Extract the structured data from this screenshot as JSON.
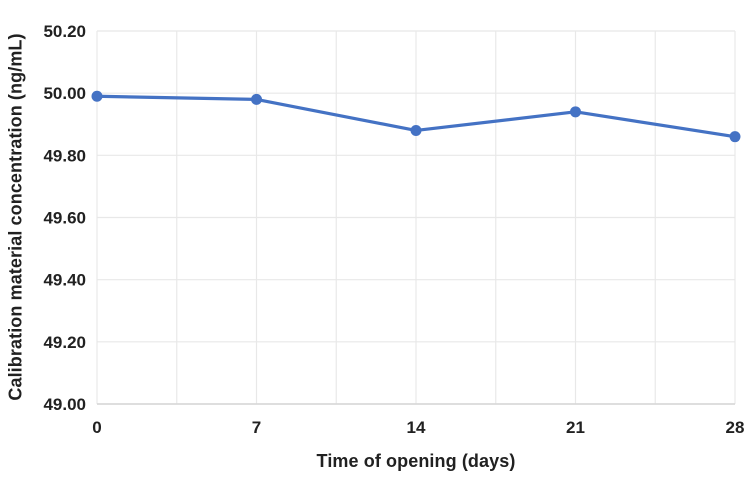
{
  "chart_data": {
    "type": "line",
    "title": "",
    "xlabel": "Time of opening (days)",
    "ylabel": "Calibration material concentration (ng/mL)",
    "x": [
      0,
      7,
      14,
      21,
      28
    ],
    "series": [
      {
        "name": "Calibration material concentration",
        "values": [
          49.99,
          49.98,
          49.88,
          49.94,
          49.86
        ]
      }
    ],
    "xlim": [
      0,
      28
    ],
    "ylim": [
      49.0,
      50.2
    ],
    "x_tick_labels": [
      "0",
      "7",
      "14",
      "21",
      "28"
    ],
    "y_tick_labels": [
      "49.00",
      "49.20",
      "49.40",
      "49.60",
      "49.80",
      "50.00",
      "50.20"
    ],
    "x_major_tick_step": 7,
    "x_minor_grid_step": 3.5,
    "y_tick_step": 0.2,
    "grid": true,
    "legend": "none",
    "colors": {
      "line": "#4472C4",
      "marker": "#4472C4",
      "gridline": "#e8e8e8",
      "axis_line": "#d6d6d6",
      "text": "#212121"
    }
  }
}
